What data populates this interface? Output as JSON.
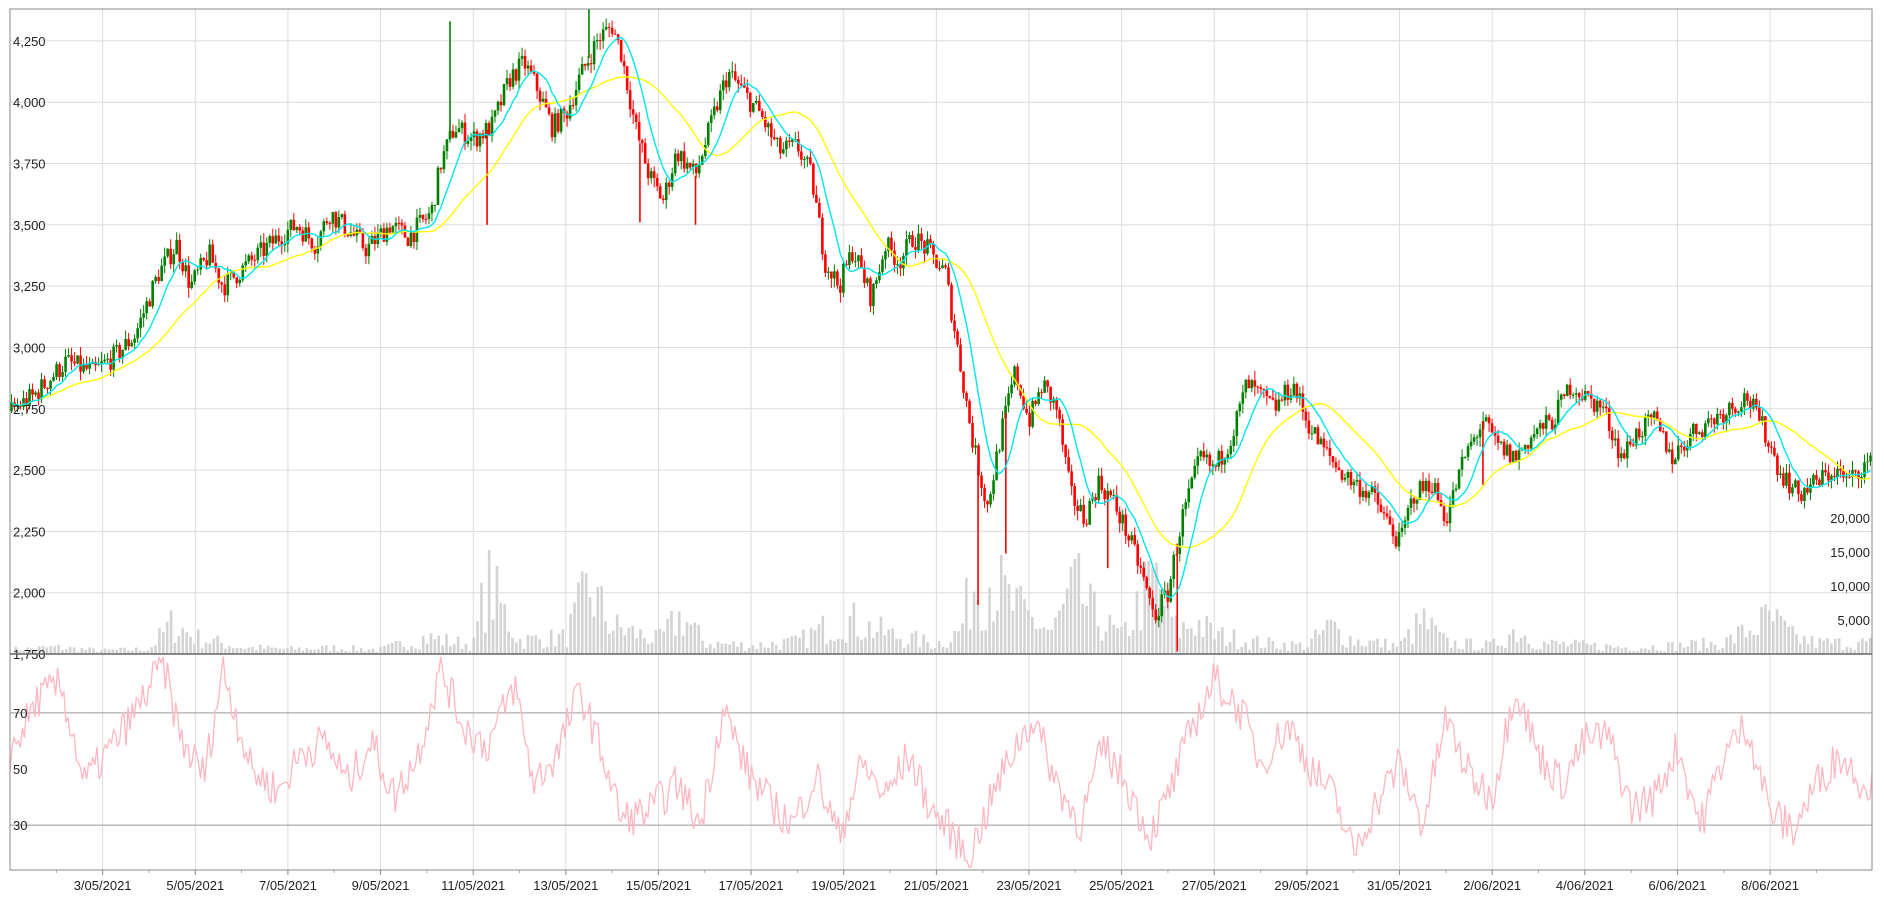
{
  "chart_data": [
    {
      "type": "candlestick",
      "title": "",
      "xlabel": "",
      "ylabel": "",
      "ylim": [
        1750,
        4380
      ],
      "y_ticks": [
        1750,
        2000,
        2250,
        2500,
        2750,
        3000,
        3250,
        3500,
        3750,
        4000,
        4250
      ],
      "y_tick_labels": [
        "1,750",
        "2,000",
        "2,250",
        "2,500",
        "2,750",
        "3,000",
        "3,250",
        "3,500",
        "3,750",
        "4,000",
        "4,250"
      ],
      "x_tick_labels": [
        "3/05/2021",
        "5/05/2021",
        "7/05/2021",
        "9/05/2021",
        "11/05/2021",
        "13/05/2021",
        "15/05/2021",
        "17/05/2021",
        "19/05/2021",
        "21/05/2021",
        "23/05/2021",
        "25/05/2021",
        "27/05/2021",
        "29/05/2021",
        "31/05/2021",
        "2/06/2021",
        "4/06/2021",
        "6/06/2021",
        "8/06/2021"
      ],
      "x_range_days": [
        0,
        40.2
      ],
      "grid": true,
      "colors": {
        "up": "#008000",
        "down": "#ff0000",
        "ma_fast": "#00e5ee",
        "ma_slow": "#ffff00"
      },
      "price_path": [
        [
          0,
          2740
        ],
        [
          0.5,
          2800
        ],
        [
          1.2,
          2940
        ],
        [
          1.8,
          2900
        ],
        [
          2.3,
          2970
        ],
        [
          2.7,
          3050
        ],
        [
          3.2,
          3300
        ],
        [
          3.6,
          3420
        ],
        [
          3.9,
          3250
        ],
        [
          4.3,
          3380
        ],
        [
          4.6,
          3250
        ],
        [
          5.2,
          3350
        ],
        [
          5.8,
          3450
        ],
        [
          6.2,
          3500
        ],
        [
          6.6,
          3420
        ],
        [
          6.9,
          3550
        ],
        [
          7.3,
          3480
        ],
        [
          7.7,
          3400
        ],
        [
          8.2,
          3500
        ],
        [
          8.6,
          3450
        ],
        [
          9.1,
          3550
        ],
        [
          9.3,
          3750
        ],
        [
          9.6,
          3900
        ],
        [
          10,
          3850
        ],
        [
          10.4,
          3900
        ],
        [
          10.8,
          4100
        ],
        [
          11.1,
          4160
        ],
        [
          11.4,
          4050
        ],
        [
          11.7,
          3900
        ],
        [
          12,
          3950
        ],
        [
          12.3,
          4100
        ],
        [
          12.7,
          4260
        ],
        [
          13,
          4310
        ],
        [
          13.2,
          4200
        ],
        [
          13.5,
          3900
        ],
        [
          13.8,
          3700
        ],
        [
          14.1,
          3600
        ],
        [
          14.4,
          3800
        ],
        [
          14.8,
          3700
        ],
        [
          15.2,
          3950
        ],
        [
          15.5,
          4120
        ],
        [
          15.8,
          4050
        ],
        [
          16.2,
          3950
        ],
        [
          16.6,
          3800
        ],
        [
          17,
          3820
        ],
        [
          17.3,
          3700
        ],
        [
          17.6,
          3350
        ],
        [
          17.9,
          3250
        ],
        [
          18.2,
          3400
        ],
        [
          18.6,
          3200
        ],
        [
          18.9,
          3420
        ],
        [
          19.2,
          3350
        ],
        [
          19.5,
          3450
        ],
        [
          19.8,
          3400
        ],
        [
          20.2,
          3300
        ],
        [
          20.5,
          2950
        ],
        [
          20.8,
          2600
        ],
        [
          21.1,
          2350
        ],
        [
          21.4,
          2650
        ],
        [
          21.7,
          2900
        ],
        [
          22,
          2700
        ],
        [
          22.3,
          2850
        ],
        [
          22.6,
          2750
        ],
        [
          22.9,
          2400
        ],
        [
          23.2,
          2300
        ],
        [
          23.5,
          2450
        ],
        [
          23.8,
          2380
        ],
        [
          24.1,
          2250
        ],
        [
          24.4,
          2100
        ],
        [
          24.7,
          1900
        ],
        [
          25,
          2000
        ],
        [
          25.3,
          2300
        ],
        [
          25.7,
          2550
        ],
        [
          26,
          2500
        ],
        [
          26.4,
          2650
        ],
        [
          26.7,
          2850
        ],
        [
          27,
          2800
        ],
        [
          27.3,
          2750
        ],
        [
          27.7,
          2850
        ],
        [
          28,
          2700
        ],
        [
          28.3,
          2600
        ],
        [
          28.7,
          2500
        ],
        [
          29,
          2450
        ],
        [
          29.4,
          2400
        ],
        [
          29.7,
          2300
        ],
        [
          30,
          2200
        ],
        [
          30.3,
          2400
        ],
        [
          30.7,
          2450
        ],
        [
          31,
          2300
        ],
        [
          31.4,
          2550
        ],
        [
          31.8,
          2700
        ],
        [
          32.1,
          2600
        ],
        [
          32.5,
          2550
        ],
        [
          32.9,
          2650
        ],
        [
          33.3,
          2700
        ],
        [
          33.7,
          2850
        ],
        [
          34,
          2800
        ],
        [
          34.4,
          2750
        ],
        [
          34.8,
          2550
        ],
        [
          35.1,
          2650
        ],
        [
          35.5,
          2700
        ],
        [
          35.9,
          2550
        ],
        [
          36.3,
          2650
        ],
        [
          36.7,
          2700
        ],
        [
          37.1,
          2750
        ],
        [
          37.5,
          2800
        ],
        [
          37.9,
          2650
        ],
        [
          38.2,
          2500
        ],
        [
          38.6,
          2400
        ],
        [
          39,
          2450
        ],
        [
          39.4,
          2500
        ],
        [
          39.7,
          2450
        ],
        [
          40,
          2520
        ]
      ],
      "spike_events": [
        [
          9.5,
          4330
        ],
        [
          10.3,
          3500
        ],
        [
          12.5,
          4380
        ],
        [
          13.6,
          3510
        ],
        [
          14.8,
          3500
        ],
        [
          20.9,
          1950
        ],
        [
          21.5,
          2160
        ],
        [
          23.7,
          2100
        ],
        [
          25.2,
          1760
        ],
        [
          31.8,
          2440
        ]
      ]
    },
    {
      "type": "bar",
      "title": "",
      "series_name": "",
      "ylim": [
        0,
        25000
      ],
      "y_ticks": [
        5000,
        10000,
        15000,
        20000
      ],
      "y_tick_labels": [
        "5,000",
        "10,000",
        "15,000",
        "20,000"
      ],
      "color": "#d3d3d3",
      "volume_path": [
        [
          0,
          800
        ],
        [
          1,
          1200
        ],
        [
          2,
          600
        ],
        [
          3,
          900
        ],
        [
          3.5,
          5500
        ],
        [
          4,
          3000
        ],
        [
          5,
          1200
        ],
        [
          6,
          900
        ],
        [
          7,
          1100
        ],
        [
          8,
          800
        ],
        [
          9,
          3000
        ],
        [
          10,
          1600
        ],
        [
          10.3,
          13000
        ],
        [
          11,
          2500
        ],
        [
          12,
          3000
        ],
        [
          12.5,
          12000
        ],
        [
          13,
          5000
        ],
        [
          14,
          2500
        ],
        [
          14.5,
          7000
        ],
        [
          15,
          2000
        ],
        [
          16,
          1500
        ],
        [
          17,
          2200
        ],
        [
          18,
          6500
        ],
        [
          19,
          3500
        ],
        [
          20,
          1800
        ],
        [
          20.5,
          4000
        ],
        [
          20.8,
          13000
        ],
        [
          21.2,
          14000
        ],
        [
          21.6,
          9000
        ],
        [
          22,
          6500
        ],
        [
          22.5,
          4000
        ],
        [
          23,
          12000
        ],
        [
          23.4,
          7000
        ],
        [
          24,
          3000
        ],
        [
          24.7,
          14000
        ],
        [
          25.2,
          4000
        ],
        [
          25.6,
          6000
        ],
        [
          26,
          3500
        ],
        [
          27,
          2000
        ],
        [
          28,
          1500
        ],
        [
          28.5,
          5000
        ],
        [
          29,
          2500
        ],
        [
          30,
          1500
        ],
        [
          30.5,
          6000
        ],
        [
          31,
          2000
        ],
        [
          32,
          1500
        ],
        [
          32.5,
          4500
        ],
        [
          33,
          2000
        ],
        [
          34,
          1500
        ],
        [
          35,
          1200
        ],
        [
          36,
          1500
        ],
        [
          37,
          2000
        ],
        [
          38,
          6500
        ],
        [
          38.5,
          3000
        ],
        [
          39,
          2000
        ],
        [
          40,
          2000
        ]
      ]
    },
    {
      "type": "line",
      "title": "",
      "series_name": "",
      "ylim": [
        14,
        91
      ],
      "y_ticks": [
        30,
        50,
        70
      ],
      "y_tick_labels": [
        "30",
        "50",
        "70"
      ],
      "reference_lines": [
        30,
        70
      ],
      "color": "#ffb6c1",
      "oscillator_path": [
        [
          0,
          55
        ],
        [
          0.6,
          75
        ],
        [
          1.1,
          80
        ],
        [
          1.6,
          45
        ],
        [
          2.2,
          58
        ],
        [
          2.7,
          70
        ],
        [
          3.3,
          88
        ],
        [
          3.7,
          60
        ],
        [
          4.2,
          48
        ],
        [
          4.6,
          86
        ],
        [
          5.2,
          50
        ],
        [
          5.8,
          42
        ],
        [
          6.3,
          56
        ],
        [
          6.8,
          60
        ],
        [
          7.3,
          45
        ],
        [
          7.8,
          60
        ],
        [
          8.3,
          40
        ],
        [
          8.8,
          55
        ],
        [
          9.3,
          86
        ],
        [
          9.8,
          65
        ],
        [
          10.3,
          58
        ],
        [
          10.9,
          80
        ],
        [
          11.3,
          45
        ],
        [
          11.8,
          55
        ],
        [
          12.3,
          78
        ],
        [
          12.8,
          55
        ],
        [
          13.2,
          32
        ],
        [
          13.8,
          35
        ],
        [
          14.4,
          45
        ],
        [
          14.9,
          30
        ],
        [
          15.4,
          72
        ],
        [
          15.9,
          50
        ],
        [
          16.4,
          38
        ],
        [
          16.9,
          30
        ],
        [
          17.4,
          48
        ],
        [
          17.9,
          26
        ],
        [
          18.4,
          52
        ],
        [
          18.9,
          40
        ],
        [
          19.4,
          55
        ],
        [
          19.9,
          35
        ],
        [
          20.3,
          28
        ],
        [
          20.7,
          18
        ],
        [
          21.2,
          40
        ],
        [
          21.7,
          58
        ],
        [
          22.1,
          68
        ],
        [
          22.6,
          45
        ],
        [
          23.1,
          30
        ],
        [
          23.6,
          58
        ],
        [
          24.1,
          45
        ],
        [
          24.6,
          26
        ],
        [
          25,
          40
        ],
        [
          25.5,
          64
        ],
        [
          26,
          82
        ],
        [
          26.6,
          70
        ],
        [
          27,
          52
        ],
        [
          27.6,
          66
        ],
        [
          28.1,
          50
        ],
        [
          28.6,
          40
        ],
        [
          29,
          20
        ],
        [
          29.5,
          38
        ],
        [
          30,
          52
        ],
        [
          30.5,
          30
        ],
        [
          31,
          68
        ],
        [
          31.5,
          48
        ],
        [
          32,
          40
        ],
        [
          32.5,
          80
        ],
        [
          33,
          55
        ],
        [
          33.5,
          45
        ],
        [
          34,
          60
        ],
        [
          34.5,
          62
        ],
        [
          35,
          36
        ],
        [
          35.5,
          40
        ],
        [
          36,
          58
        ],
        [
          36.5,
          30
        ],
        [
          37,
          55
        ],
        [
          37.5,
          66
        ],
        [
          38,
          35
        ],
        [
          38.5,
          28
        ],
        [
          39,
          45
        ],
        [
          39.5,
          55
        ],
        [
          40,
          45
        ]
      ]
    }
  ]
}
